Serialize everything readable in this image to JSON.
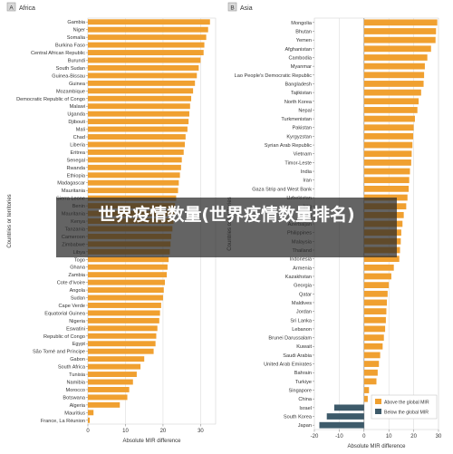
{
  "banner": {
    "text": "世界疫情数量(世界疫情数量排名)"
  },
  "chart_data": [
    {
      "type": "bar",
      "orientation": "horizontal",
      "panel_letter": "A",
      "title": "Africa",
      "xlabel": "Absolute MIR difference",
      "ylabel": "Countries or territories",
      "xlim": [
        0,
        34
      ],
      "xticks": [
        0,
        10,
        20,
        30
      ],
      "grid": true,
      "color": "#f0a030",
      "categories": [
        "Gambia",
        "Niger",
        "Somalia",
        "Burkina Faso",
        "Central African Republic",
        "Burundi",
        "South Sudan",
        "Guinea-Bissau",
        "Guinea",
        "Mozambique",
        "Democratic Republic of Congo",
        "Malawi",
        "Uganda",
        "Djibouti",
        "Mali",
        "Chad",
        "Liberia",
        "Eritrea",
        "Senegal",
        "Rwanda",
        "Ethiopia",
        "Madagascar",
        "Mauritania",
        "Sierra Leone",
        "Benin",
        "Mauritania",
        "Kenya",
        "Tanzania",
        "Cameroon",
        "Zimbabwe",
        "Libya",
        "Togo",
        "Ghana",
        "Zambia",
        "Cote d'Ivoire",
        "Angola",
        "Sudan",
        "Cape Verde",
        "Equatorial Guinea",
        "Nigeria",
        "Eswatini",
        "Republic of Congo",
        "Egypt",
        "São Tomé and Príncipe",
        "Gabon",
        "South Africa",
        "Tunisia",
        "Namibia",
        "Morocco",
        "Botswana",
        "Algeria",
        "Mauritius",
        "France, La Réunion"
      ],
      "values": [
        32.5,
        32.0,
        31.5,
        31.0,
        30.8,
        30.0,
        29.5,
        29.0,
        28.5,
        28.0,
        27.5,
        27.2,
        27.0,
        26.8,
        26.5,
        26.0,
        25.8,
        25.5,
        25.0,
        24.8,
        24.5,
        24.2,
        24.0,
        23.5,
        23.2,
        23.0,
        22.8,
        22.5,
        22.2,
        22.0,
        21.8,
        21.5,
        21.2,
        21.0,
        20.5,
        20.2,
        20.0,
        19.5,
        19.2,
        19.0,
        18.5,
        18.2,
        18.0,
        17.5,
        15.0,
        14.0,
        13.0,
        12.0,
        11.0,
        10.5,
        8.5,
        1.5,
        0.5
      ]
    },
    {
      "type": "bar",
      "orientation": "horizontal",
      "panel_letter": "B",
      "title": "Asia",
      "xlabel": "Absolute MIR difference",
      "ylabel": "Countries or territories",
      "xlim": [
        -20,
        30
      ],
      "xticks": [
        -20,
        -10,
        0,
        10,
        20,
        30
      ],
      "grid": true,
      "legend": "bottom-right",
      "series": [
        {
          "name": "Above the global MIR",
          "color": "#f0a030"
        },
        {
          "name": "Below the global MIR",
          "color": "#3d5a6a"
        }
      ],
      "categories": [
        "Mongolia",
        "Bhutan",
        "Yemen",
        "Afghanistan",
        "Cambodia",
        "Myanmar",
        "Lao People's Democratic Republic",
        "Bangladesh",
        "Tajikistan",
        "North Korea",
        "Nepal",
        "Turkmenistan",
        "Pakistan",
        "Kyrgyzstan",
        "Syrian Arab Republic",
        "Vietnam",
        "Timor-Leste",
        "India",
        "Iran",
        "Gaza Strip and West Bank",
        "Uzbekistan",
        "Iraq",
        "Oman",
        "Azerbaijan",
        "Philippines",
        "Malaysia",
        "Thailand",
        "Indonesia",
        "Armenia",
        "Kazakhstan",
        "Georgia",
        "Qatar",
        "Maldives",
        "Jordan",
        "Sri Lanka",
        "Lebanon",
        "Brunei Darussalam",
        "Kuwait",
        "Saudi Arabia",
        "United Arab Emirates",
        "Bahrain",
        "Turkiye",
        "Singapore",
        "China",
        "Israel",
        "South Korea",
        "Japan"
      ],
      "values": [
        29.5,
        29.0,
        28.8,
        27.0,
        25.5,
        24.5,
        24.2,
        24.0,
        23.0,
        22.0,
        21.5,
        20.5,
        20.0,
        19.8,
        19.5,
        19.2,
        19.0,
        18.5,
        18.2,
        18.0,
        17.5,
        17.0,
        16.0,
        15.5,
        15.0,
        14.8,
        14.5,
        14.2,
        12.0,
        11.0,
        10.0,
        9.5,
        9.2,
        9.0,
        8.8,
        8.5,
        8.0,
        7.5,
        6.5,
        6.0,
        5.5,
        5.0,
        2.0,
        1.5,
        -12.0,
        -15.0,
        -18.0
      ]
    }
  ]
}
